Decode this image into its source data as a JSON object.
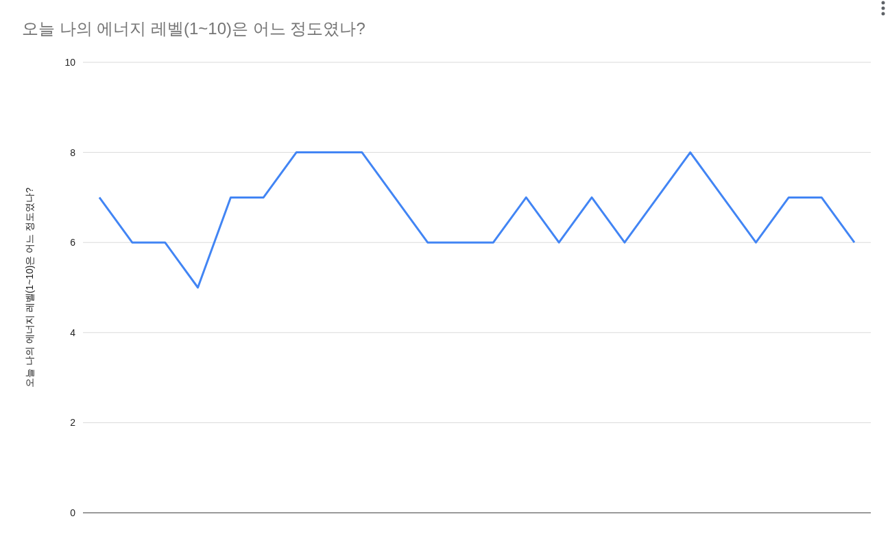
{
  "chart_data": {
    "type": "line",
    "title": "오늘 나의 에너지 레벨(1~10)은 어느 정도였나?",
    "ylabel": "오늘 나의 에너지 레벨(1~10)은 어느 정도였나?",
    "categories": [
      null,
      null,
      null,
      null,
      null,
      null,
      null,
      null,
      null,
      null,
      null,
      null,
      null,
      null,
      null,
      null,
      null,
      null,
      null,
      null,
      null,
      null,
      null,
      null
    ],
    "series": [
      {
        "color": "#4285f4",
        "values": [
          7,
          6,
          6,
          5,
          7,
          7,
          8,
          8,
          8,
          7,
          6,
          6,
          6,
          7,
          6,
          7,
          6,
          7,
          8,
          7,
          6,
          7,
          7,
          6
        ]
      }
    ],
    "ylim": [
      0,
      10
    ],
    "yticks": [
      0,
      2,
      4,
      6,
      8,
      10
    ],
    "grid": "y",
    "tick_labels": "y"
  }
}
